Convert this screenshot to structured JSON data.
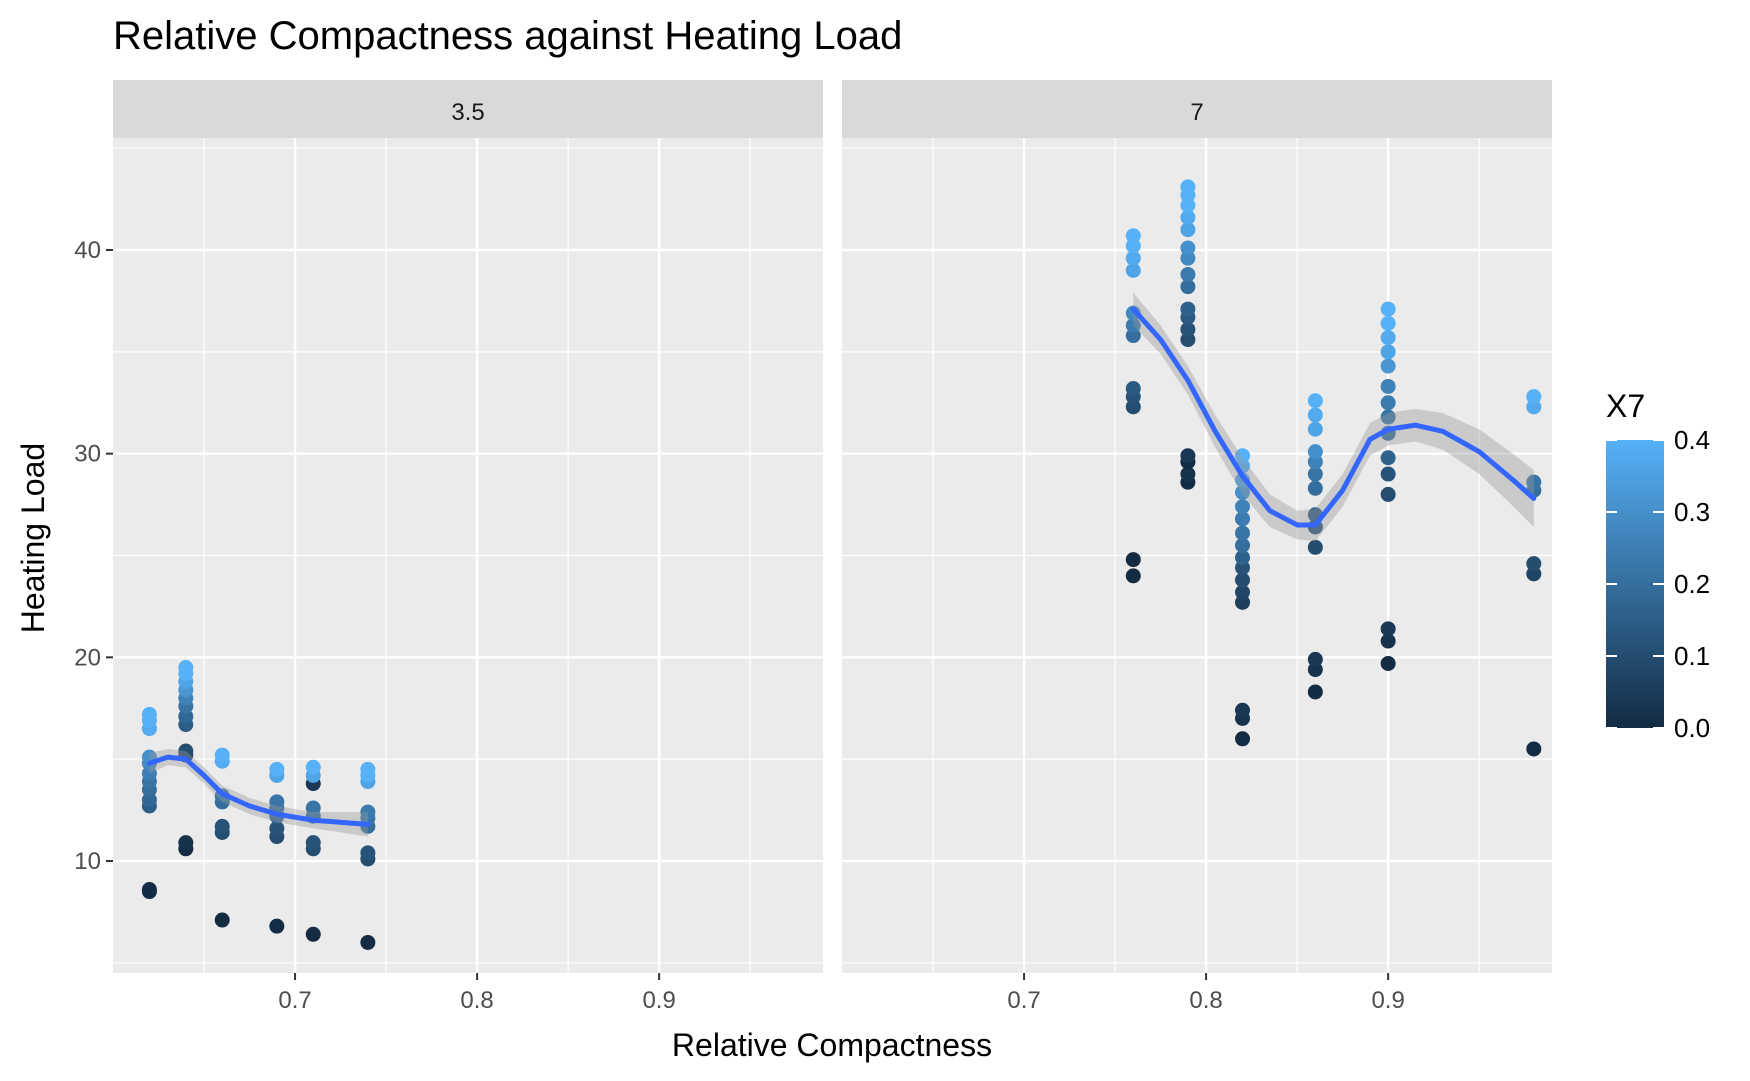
{
  "chart_data": {
    "type": "scatter",
    "title": "Relative Compactness against Heating Load",
    "xlabel": "Relative Compactness",
    "ylabel": "Heating Load",
    "xlim": [
      0.6,
      0.99
    ],
    "ylim": [
      4.5,
      45.5
    ],
    "x_ticks": [
      0.7,
      0.8,
      0.9
    ],
    "y_ticks": [
      10,
      20,
      30,
      40
    ],
    "grid": true,
    "facet_variable": "",
    "facets": [
      {
        "label": "3.5",
        "points": [
          {
            "x": 0.62,
            "y": 8.5,
            "c": 0.0
          },
          {
            "x": 0.62,
            "y": 8.6,
            "c": 0.0
          },
          {
            "x": 0.62,
            "y": 12.7,
            "c": 0.15
          },
          {
            "x": 0.62,
            "y": 13.0,
            "c": 0.18
          },
          {
            "x": 0.62,
            "y": 13.5,
            "c": 0.2
          },
          {
            "x": 0.62,
            "y": 13.9,
            "c": 0.22
          },
          {
            "x": 0.62,
            "y": 14.3,
            "c": 0.25
          },
          {
            "x": 0.62,
            "y": 14.8,
            "c": 0.28
          },
          {
            "x": 0.62,
            "y": 15.1,
            "c": 0.3
          },
          {
            "x": 0.62,
            "y": 16.5,
            "c": 0.38
          },
          {
            "x": 0.62,
            "y": 16.9,
            "c": 0.4
          },
          {
            "x": 0.62,
            "y": 17.2,
            "c": 0.4
          },
          {
            "x": 0.64,
            "y": 10.6,
            "c": 0.0
          },
          {
            "x": 0.64,
            "y": 10.9,
            "c": 0.02
          },
          {
            "x": 0.64,
            "y": 15.2,
            "c": 0.08
          },
          {
            "x": 0.64,
            "y": 15.4,
            "c": 0.1
          },
          {
            "x": 0.64,
            "y": 16.7,
            "c": 0.15
          },
          {
            "x": 0.64,
            "y": 17.1,
            "c": 0.18
          },
          {
            "x": 0.64,
            "y": 17.6,
            "c": 0.22
          },
          {
            "x": 0.64,
            "y": 18.0,
            "c": 0.26
          },
          {
            "x": 0.64,
            "y": 18.4,
            "c": 0.32
          },
          {
            "x": 0.64,
            "y": 18.8,
            "c": 0.36
          },
          {
            "x": 0.64,
            "y": 19.2,
            "c": 0.4
          },
          {
            "x": 0.64,
            "y": 19.5,
            "c": 0.4
          },
          {
            "x": 0.66,
            "y": 7.1,
            "c": 0.0
          },
          {
            "x": 0.66,
            "y": 11.4,
            "c": 0.1
          },
          {
            "x": 0.66,
            "y": 11.7,
            "c": 0.12
          },
          {
            "x": 0.66,
            "y": 12.9,
            "c": 0.2
          },
          {
            "x": 0.66,
            "y": 13.2,
            "c": 0.22
          },
          {
            "x": 0.66,
            "y": 14.9,
            "c": 0.38
          },
          {
            "x": 0.66,
            "y": 15.2,
            "c": 0.4
          },
          {
            "x": 0.69,
            "y": 6.8,
            "c": 0.0
          },
          {
            "x": 0.69,
            "y": 11.2,
            "c": 0.1
          },
          {
            "x": 0.69,
            "y": 11.6,
            "c": 0.12
          },
          {
            "x": 0.69,
            "y": 12.2,
            "c": 0.18
          },
          {
            "x": 0.69,
            "y": 12.6,
            "c": 0.2
          },
          {
            "x": 0.69,
            "y": 12.9,
            "c": 0.22
          },
          {
            "x": 0.69,
            "y": 14.2,
            "c": 0.36
          },
          {
            "x": 0.69,
            "y": 14.5,
            "c": 0.4
          },
          {
            "x": 0.71,
            "y": 6.4,
            "c": 0.0
          },
          {
            "x": 0.71,
            "y": 10.6,
            "c": 0.1
          },
          {
            "x": 0.71,
            "y": 10.9,
            "c": 0.12
          },
          {
            "x": 0.71,
            "y": 12.2,
            "c": 0.2
          },
          {
            "x": 0.71,
            "y": 12.6,
            "c": 0.22
          },
          {
            "x": 0.71,
            "y": 13.8,
            "c": 0.04
          },
          {
            "x": 0.71,
            "y": 14.2,
            "c": 0.36
          },
          {
            "x": 0.71,
            "y": 14.6,
            "c": 0.4
          },
          {
            "x": 0.74,
            "y": 6.0,
            "c": 0.0
          },
          {
            "x": 0.74,
            "y": 10.1,
            "c": 0.1
          },
          {
            "x": 0.74,
            "y": 10.4,
            "c": 0.12
          },
          {
            "x": 0.74,
            "y": 11.7,
            "c": 0.2
          },
          {
            "x": 0.74,
            "y": 12.1,
            "c": 0.22
          },
          {
            "x": 0.74,
            "y": 12.4,
            "c": 0.24
          },
          {
            "x": 0.74,
            "y": 13.9,
            "c": 0.36
          },
          {
            "x": 0.74,
            "y": 14.2,
            "c": 0.4
          },
          {
            "x": 0.74,
            "y": 14.5,
            "c": 0.4
          }
        ],
        "smooth": [
          {
            "x": 0.62,
            "y": 14.8
          },
          {
            "x": 0.63,
            "y": 15.1
          },
          {
            "x": 0.64,
            "y": 15.0
          },
          {
            "x": 0.65,
            "y": 14.2
          },
          {
            "x": 0.66,
            "y": 13.3
          },
          {
            "x": 0.675,
            "y": 12.7
          },
          {
            "x": 0.69,
            "y": 12.3
          },
          {
            "x": 0.71,
            "y": 12.0
          },
          {
            "x": 0.74,
            "y": 11.8
          }
        ],
        "band": [
          {
            "x": 0.62,
            "lo": 14.3,
            "hi": 15.3
          },
          {
            "x": 0.63,
            "lo": 14.7,
            "hi": 15.5
          },
          {
            "x": 0.64,
            "lo": 14.6,
            "hi": 15.4
          },
          {
            "x": 0.65,
            "lo": 13.8,
            "hi": 14.6
          },
          {
            "x": 0.66,
            "lo": 12.9,
            "hi": 13.7
          },
          {
            "x": 0.675,
            "lo": 12.3,
            "hi": 13.1
          },
          {
            "x": 0.69,
            "lo": 11.9,
            "hi": 12.7
          },
          {
            "x": 0.71,
            "lo": 11.6,
            "hi": 12.4
          },
          {
            "x": 0.74,
            "lo": 11.2,
            "hi": 12.4
          }
        ]
      },
      {
        "label": "7",
        "points": [
          {
            "x": 0.76,
            "y": 24.0,
            "c": 0.0
          },
          {
            "x": 0.76,
            "y": 24.8,
            "c": 0.0
          },
          {
            "x": 0.76,
            "y": 32.3,
            "c": 0.1
          },
          {
            "x": 0.76,
            "y": 32.8,
            "c": 0.12
          },
          {
            "x": 0.76,
            "y": 33.2,
            "c": 0.14
          },
          {
            "x": 0.76,
            "y": 35.8,
            "c": 0.2
          },
          {
            "x": 0.76,
            "y": 36.3,
            "c": 0.24
          },
          {
            "x": 0.76,
            "y": 36.9,
            "c": 0.28
          },
          {
            "x": 0.76,
            "y": 39.0,
            "c": 0.36
          },
          {
            "x": 0.76,
            "y": 39.6,
            "c": 0.38
          },
          {
            "x": 0.76,
            "y": 40.2,
            "c": 0.4
          },
          {
            "x": 0.76,
            "y": 40.7,
            "c": 0.4
          },
          {
            "x": 0.79,
            "y": 28.6,
            "c": 0.0
          },
          {
            "x": 0.79,
            "y": 29.0,
            "c": 0.02
          },
          {
            "x": 0.79,
            "y": 29.6,
            "c": 0.0
          },
          {
            "x": 0.79,
            "y": 29.9,
            "c": 0.04
          },
          {
            "x": 0.79,
            "y": 35.6,
            "c": 0.1
          },
          {
            "x": 0.79,
            "y": 36.1,
            "c": 0.12
          },
          {
            "x": 0.79,
            "y": 36.7,
            "c": 0.14
          },
          {
            "x": 0.79,
            "y": 37.1,
            "c": 0.16
          },
          {
            "x": 0.79,
            "y": 38.2,
            "c": 0.2
          },
          {
            "x": 0.79,
            "y": 38.8,
            "c": 0.24
          },
          {
            "x": 0.79,
            "y": 39.6,
            "c": 0.28
          },
          {
            "x": 0.79,
            "y": 40.1,
            "c": 0.3
          },
          {
            "x": 0.79,
            "y": 41.0,
            "c": 0.36
          },
          {
            "x": 0.79,
            "y": 41.6,
            "c": 0.38
          },
          {
            "x": 0.79,
            "y": 42.2,
            "c": 0.4
          },
          {
            "x": 0.79,
            "y": 42.7,
            "c": 0.4
          },
          {
            "x": 0.79,
            "y": 43.1,
            "c": 0.4
          },
          {
            "x": 0.82,
            "y": 16.0,
            "c": 0.0
          },
          {
            "x": 0.82,
            "y": 17.0,
            "c": 0.02
          },
          {
            "x": 0.82,
            "y": 17.4,
            "c": 0.04
          },
          {
            "x": 0.82,
            "y": 22.7,
            "c": 0.06
          },
          {
            "x": 0.82,
            "y": 23.2,
            "c": 0.08
          },
          {
            "x": 0.82,
            "y": 23.8,
            "c": 0.1
          },
          {
            "x": 0.82,
            "y": 24.4,
            "c": 0.12
          },
          {
            "x": 0.82,
            "y": 24.9,
            "c": 0.16
          },
          {
            "x": 0.82,
            "y": 25.5,
            "c": 0.2
          },
          {
            "x": 0.82,
            "y": 26.1,
            "c": 0.22
          },
          {
            "x": 0.82,
            "y": 26.8,
            "c": 0.24
          },
          {
            "x": 0.82,
            "y": 27.4,
            "c": 0.26
          },
          {
            "x": 0.82,
            "y": 28.1,
            "c": 0.3
          },
          {
            "x": 0.82,
            "y": 28.7,
            "c": 0.34
          },
          {
            "x": 0.82,
            "y": 29.4,
            "c": 0.38
          },
          {
            "x": 0.82,
            "y": 29.9,
            "c": 0.4
          },
          {
            "x": 0.86,
            "y": 18.3,
            "c": 0.0
          },
          {
            "x": 0.86,
            "y": 19.4,
            "c": 0.02
          },
          {
            "x": 0.86,
            "y": 19.9,
            "c": 0.04
          },
          {
            "x": 0.86,
            "y": 25.4,
            "c": 0.1
          },
          {
            "x": 0.86,
            "y": 26.4,
            "c": 0.12
          },
          {
            "x": 0.86,
            "y": 27.0,
            "c": 0.14
          },
          {
            "x": 0.86,
            "y": 28.3,
            "c": 0.2
          },
          {
            "x": 0.86,
            "y": 29.0,
            "c": 0.22
          },
          {
            "x": 0.86,
            "y": 29.6,
            "c": 0.26
          },
          {
            "x": 0.86,
            "y": 30.1,
            "c": 0.3
          },
          {
            "x": 0.86,
            "y": 31.2,
            "c": 0.36
          },
          {
            "x": 0.86,
            "y": 31.9,
            "c": 0.38
          },
          {
            "x": 0.86,
            "y": 32.6,
            "c": 0.4
          },
          {
            "x": 0.9,
            "y": 19.7,
            "c": 0.0
          },
          {
            "x": 0.9,
            "y": 20.8,
            "c": 0.02
          },
          {
            "x": 0.9,
            "y": 21.4,
            "c": 0.04
          },
          {
            "x": 0.9,
            "y": 28.0,
            "c": 0.1
          },
          {
            "x": 0.9,
            "y": 29.0,
            "c": 0.12
          },
          {
            "x": 0.9,
            "y": 29.8,
            "c": 0.16
          },
          {
            "x": 0.9,
            "y": 31.0,
            "c": 0.2
          },
          {
            "x": 0.9,
            "y": 31.8,
            "c": 0.22
          },
          {
            "x": 0.9,
            "y": 32.5,
            "c": 0.24
          },
          {
            "x": 0.9,
            "y": 33.3,
            "c": 0.26
          },
          {
            "x": 0.9,
            "y": 34.3,
            "c": 0.32
          },
          {
            "x": 0.9,
            "y": 35.0,
            "c": 0.36
          },
          {
            "x": 0.9,
            "y": 35.7,
            "c": 0.38
          },
          {
            "x": 0.9,
            "y": 36.4,
            "c": 0.4
          },
          {
            "x": 0.9,
            "y": 37.1,
            "c": 0.4
          },
          {
            "x": 0.98,
            "y": 15.5,
            "c": 0.0
          },
          {
            "x": 0.98,
            "y": 24.1,
            "c": 0.08
          },
          {
            "x": 0.98,
            "y": 24.6,
            "c": 0.1
          },
          {
            "x": 0.98,
            "y": 28.2,
            "c": 0.2
          },
          {
            "x": 0.98,
            "y": 28.6,
            "c": 0.22
          },
          {
            "x": 0.98,
            "y": 32.3,
            "c": 0.38
          },
          {
            "x": 0.98,
            "y": 32.8,
            "c": 0.4
          }
        ],
        "smooth": [
          {
            "x": 0.76,
            "y": 37.1
          },
          {
            "x": 0.775,
            "y": 35.6
          },
          {
            "x": 0.79,
            "y": 33.6
          },
          {
            "x": 0.805,
            "y": 31.1
          },
          {
            "x": 0.82,
            "y": 28.9
          },
          {
            "x": 0.835,
            "y": 27.2
          },
          {
            "x": 0.85,
            "y": 26.5
          },
          {
            "x": 0.86,
            "y": 26.5
          },
          {
            "x": 0.875,
            "y": 28.2
          },
          {
            "x": 0.89,
            "y": 30.7
          },
          {
            "x": 0.9,
            "y": 31.2
          },
          {
            "x": 0.915,
            "y": 31.4
          },
          {
            "x": 0.93,
            "y": 31.1
          },
          {
            "x": 0.95,
            "y": 30.1
          },
          {
            "x": 0.97,
            "y": 28.6
          },
          {
            "x": 0.98,
            "y": 27.8
          }
        ],
        "band": [
          {
            "x": 0.76,
            "lo": 36.3,
            "hi": 37.9
          },
          {
            "x": 0.775,
            "lo": 34.9,
            "hi": 36.3
          },
          {
            "x": 0.79,
            "lo": 32.9,
            "hi": 34.3
          },
          {
            "x": 0.805,
            "lo": 30.3,
            "hi": 31.9
          },
          {
            "x": 0.82,
            "lo": 28.0,
            "hi": 29.8
          },
          {
            "x": 0.835,
            "lo": 26.4,
            "hi": 28.0
          },
          {
            "x": 0.85,
            "lo": 25.8,
            "hi": 27.2
          },
          {
            "x": 0.86,
            "lo": 25.7,
            "hi": 27.3
          },
          {
            "x": 0.875,
            "lo": 27.4,
            "hi": 29.0
          },
          {
            "x": 0.89,
            "lo": 29.9,
            "hi": 31.5
          },
          {
            "x": 0.9,
            "lo": 30.4,
            "hi": 32.0
          },
          {
            "x": 0.915,
            "lo": 30.6,
            "hi": 32.2
          },
          {
            "x": 0.93,
            "lo": 30.2,
            "hi": 32.0
          },
          {
            "x": 0.95,
            "lo": 29.0,
            "hi": 31.2
          },
          {
            "x": 0.97,
            "lo": 27.3,
            "hi": 29.9
          },
          {
            "x": 0.98,
            "lo": 26.4,
            "hi": 29.2
          }
        ]
      }
    ],
    "legend": {
      "title": "X7",
      "position": "right",
      "range": [
        0.0,
        0.4
      ],
      "ticks": [
        "0.0",
        "0.1",
        "0.2",
        "0.3",
        "0.4"
      ],
      "low_color": "#132B43",
      "high_color": "#56B1F7"
    },
    "colors": {
      "panel_bg": "#EBEBEB",
      "strip_bg": "#D9D9D9",
      "grid": "#FFFFFF",
      "smooth_line": "#3366FF",
      "band": "#999999"
    }
  }
}
